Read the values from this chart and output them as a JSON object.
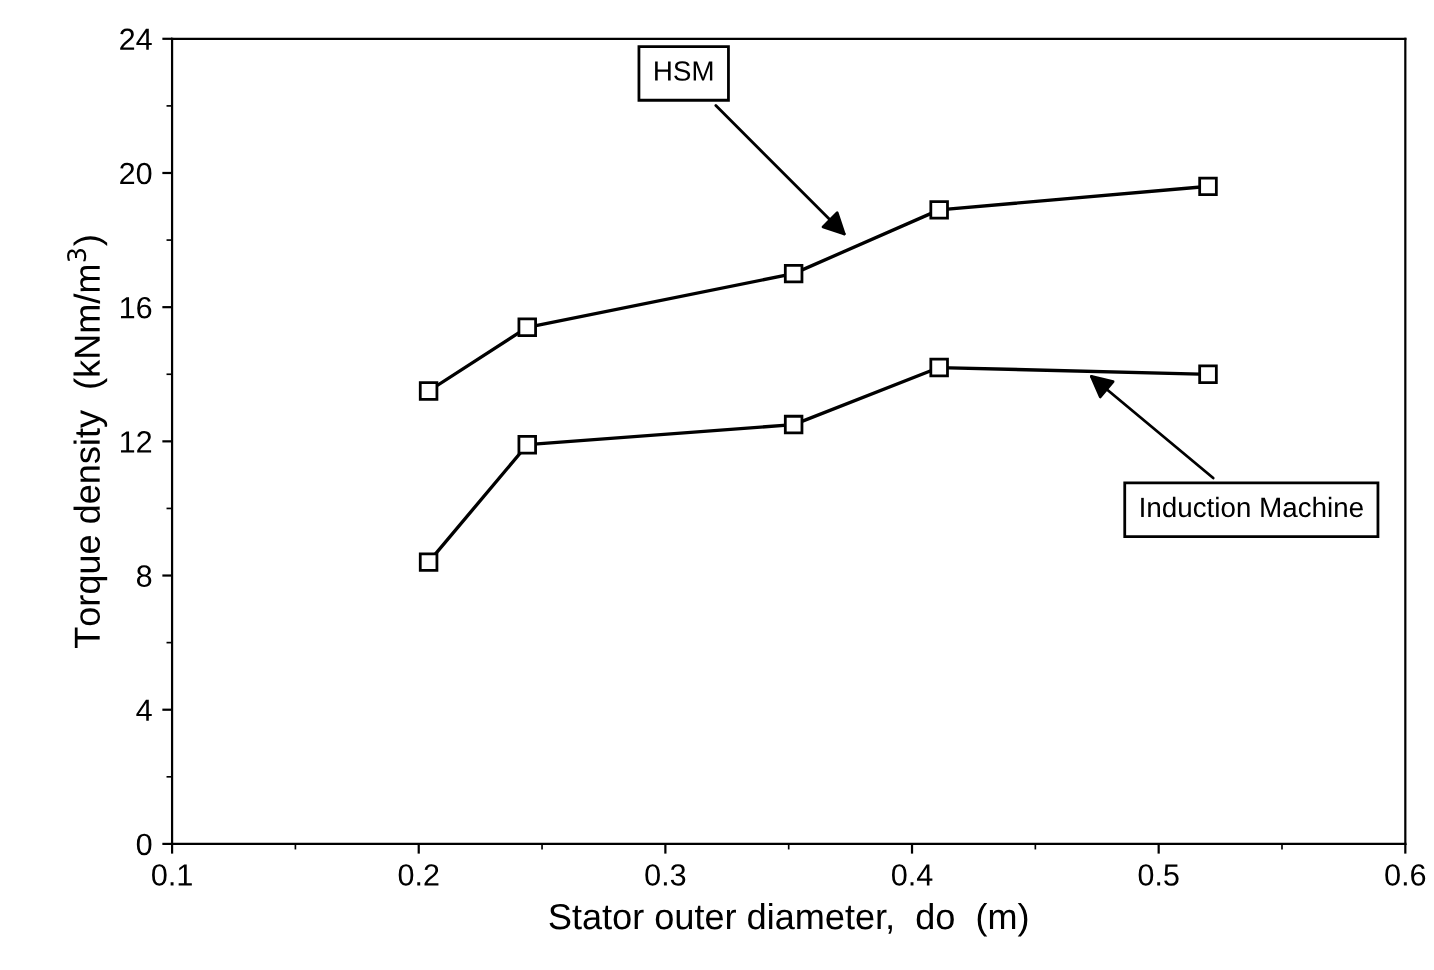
{
  "chart_data": {
    "type": "line",
    "xlabel": "Stator outer diameter,  do  (m)",
    "ylabel": "Torque density  (kNm/m$^{3}$)",
    "xlim": [
      0.1,
      0.6
    ],
    "xticks": [
      0.1,
      0.2,
      0.3,
      0.4,
      0.5,
      0.6
    ],
    "ylim": [
      0,
      24
    ],
    "yticks": [
      0,
      4,
      8,
      12,
      16,
      20,
      24
    ],
    "grid": false,
    "legend": false,
    "marker": "square",
    "line_style": "solid",
    "x": [
      0.204,
      0.244,
      0.352,
      0.411,
      0.52
    ],
    "series": [
      {
        "color": "#000000",
        "values": [
          13.5,
          15.4,
          17.0,
          18.9,
          19.6
        ]
      },
      {
        "color": "#000000",
        "values": [
          8.4,
          11.9,
          12.5,
          14.2,
          14.0
        ]
      }
    ],
    "annotations": [
      {
        "text": "HSM",
        "x": 0.375,
        "y": 18.0
      },
      {
        "text": "Induction Machine",
        "x": 0.47,
        "y": 14.1
      }
    ]
  }
}
